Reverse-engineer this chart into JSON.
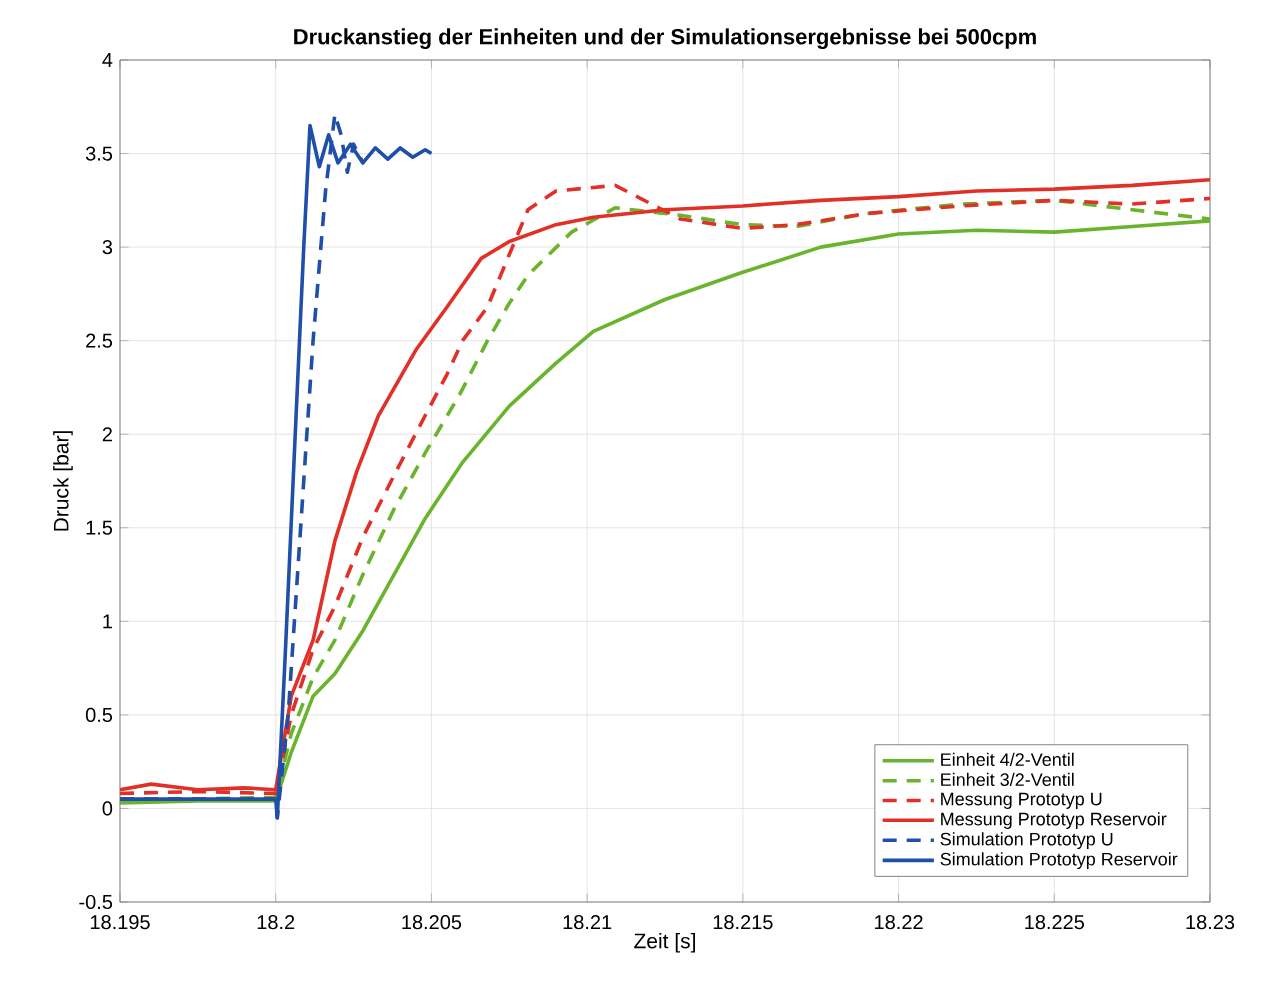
{
  "chart_data": {
    "type": "line",
    "title": "Druckanstieg der Einheiten und der Simulationsergebnisse bei 500cpm",
    "xlabel": "Zeit [s]",
    "ylabel": "Druck [bar]",
    "xlim": [
      18.195,
      18.23
    ],
    "ylim": [
      -0.5,
      4
    ],
    "xticks": [
      18.195,
      18.2,
      18.205,
      18.21,
      18.215,
      18.22,
      18.225,
      18.23
    ],
    "yticks": [
      -0.5,
      0,
      0.5,
      1,
      1.5,
      2,
      2.5,
      3,
      3.5,
      4
    ],
    "grid": true,
    "legend": "bottom right",
    "marker": "none",
    "series": [
      {
        "name": "Einheit 4/2-Ventil",
        "color": "#6ab42d",
        "line_style": "solid",
        "x": [
          18.195,
          18.1975,
          18.2,
          18.2005,
          18.2012,
          18.2019,
          18.2028,
          18.2038,
          18.2048,
          18.206,
          18.2075,
          18.209,
          18.2102,
          18.2125,
          18.2149,
          18.2175,
          18.22,
          18.2225,
          18.225,
          18.2275,
          18.23
        ],
        "values": [
          0.03,
          0.04,
          0.04,
          0.3,
          0.6,
          0.72,
          0.95,
          1.25,
          1.55,
          1.85,
          2.15,
          2.38,
          2.55,
          2.72,
          2.86,
          3.0,
          3.07,
          3.09,
          3.08,
          3.11,
          3.14
        ]
      },
      {
        "name": "Einheit 3/2-Ventil",
        "color": "#6ab42d",
        "line_style": "dashed",
        "x": [
          18.195,
          18.1975,
          18.2,
          18.2005,
          18.2012,
          18.2019,
          18.2028,
          18.2038,
          18.2048,
          18.2059,
          18.2068,
          18.2075,
          18.2081,
          18.2095,
          18.2109,
          18.213,
          18.215,
          18.2167,
          18.219,
          18.222,
          18.225,
          18.2275,
          18.23
        ],
        "values": [
          0.05,
          0.05,
          0.06,
          0.4,
          0.7,
          0.9,
          1.25,
          1.6,
          1.9,
          2.21,
          2.5,
          2.7,
          2.85,
          3.08,
          3.21,
          3.17,
          3.12,
          3.11,
          3.18,
          3.23,
          3.25,
          3.2,
          3.15
        ]
      },
      {
        "name": "Messung Prototyp U",
        "color": "#e03027",
        "line_style": "dashed",
        "x": [
          18.195,
          18.1975,
          18.2,
          18.2005,
          18.2012,
          18.2019,
          18.2028,
          18.2038,
          18.2048,
          18.2055,
          18.206,
          18.2068,
          18.2081,
          18.209,
          18.2109,
          18.213,
          18.215,
          18.2167,
          18.219,
          18.222,
          18.225,
          18.2275,
          18.23
        ],
        "values": [
          0.08,
          0.09,
          0.08,
          0.5,
          0.85,
          1.08,
          1.45,
          1.78,
          2.1,
          2.32,
          2.5,
          2.68,
          3.2,
          3.3,
          3.33,
          3.15,
          3.1,
          3.12,
          3.18,
          3.22,
          3.25,
          3.23,
          3.26
        ]
      },
      {
        "name": "Messung Prototyp Reservoir",
        "color": "#e03027",
        "line_style": "solid",
        "x": [
          18.195,
          18.196,
          18.1975,
          18.199,
          18.2,
          18.2005,
          18.2012,
          18.2019,
          18.2026,
          18.2033,
          18.2045,
          18.2055,
          18.2066,
          18.2075,
          18.209,
          18.2102,
          18.2125,
          18.215,
          18.2175,
          18.22,
          18.2225,
          18.225,
          18.2275,
          18.23
        ],
        "values": [
          0.1,
          0.13,
          0.1,
          0.11,
          0.1,
          0.6,
          0.9,
          1.43,
          1.8,
          2.1,
          2.45,
          2.68,
          2.94,
          3.03,
          3.12,
          3.16,
          3.2,
          3.22,
          3.25,
          3.27,
          3.3,
          3.31,
          3.33,
          3.36
        ]
      },
      {
        "name": "Simulation Prototyp U",
        "color": "#1f4fa8",
        "line_style": "dashed",
        "x": [
          18.195,
          18.1975,
          18.2,
          18.20005,
          18.2004,
          18.2008,
          18.2012,
          18.2016,
          18.2019,
          18.2021,
          18.2023,
          18.2025,
          18.2028
        ],
        "values": [
          0.05,
          0.05,
          0.05,
          -0.05,
          0.5,
          1.5,
          2.5,
          3.3,
          3.71,
          3.6,
          3.4,
          3.55,
          3.45
        ]
      },
      {
        "name": "Simulation Prototyp Reservoir",
        "color": "#1f4fa8",
        "line_style": "solid",
        "x": [
          18.195,
          18.1975,
          18.2,
          18.20005,
          18.2003,
          18.2006,
          18.2009,
          18.2011,
          18.2014,
          18.2017,
          18.202,
          18.2024,
          18.2028,
          18.2032,
          18.2036,
          18.204,
          18.2044,
          18.2048,
          18.205
        ],
        "values": [
          0.05,
          0.05,
          0.05,
          -0.05,
          0.8,
          1.9,
          3.0,
          3.65,
          3.43,
          3.6,
          3.45,
          3.55,
          3.45,
          3.53,
          3.47,
          3.53,
          3.48,
          3.52,
          3.5
        ]
      }
    ]
  }
}
